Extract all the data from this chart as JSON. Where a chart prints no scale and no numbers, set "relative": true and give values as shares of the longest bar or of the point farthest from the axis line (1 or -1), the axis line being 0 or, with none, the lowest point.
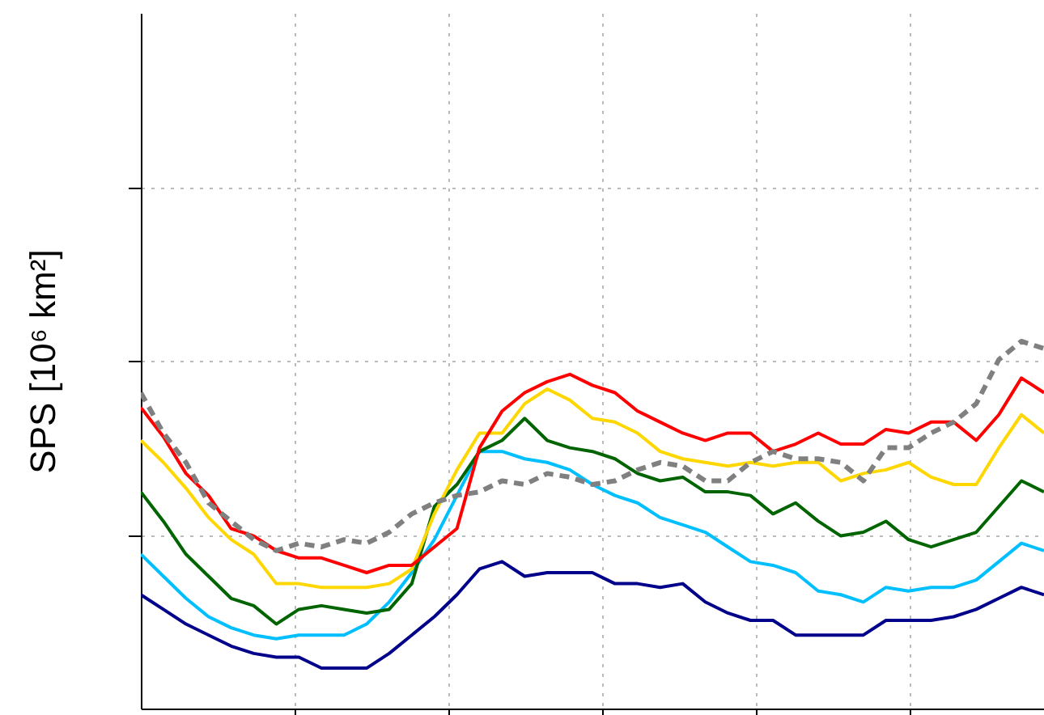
{
  "chart_data": {
    "type": "line",
    "relative": true,
    "ylabel": "SPS [10⁶ km²]",
    "grid": true,
    "categories": [
      null,
      null,
      null,
      null,
      null,
      null,
      null,
      null,
      null,
      null,
      null,
      null,
      null,
      null,
      null,
      null,
      null,
      null,
      null,
      null,
      null,
      null,
      null,
      null,
      null,
      null,
      null,
      null,
      null,
      null,
      null,
      null,
      null,
      null,
      null,
      null,
      null,
      null,
      null,
      null,
      null
    ],
    "series": [
      {
        "color": "#00008b",
        "values": [
          0.31,
          0.27,
          0.23,
          0.2,
          0.17,
          0.15,
          0.14,
          0.14,
          0.11,
          0.11,
          0.11,
          0.15,
          0.2,
          0.25,
          0.31,
          0.38,
          0.4,
          0.36,
          0.37,
          0.37,
          0.37,
          0.34,
          0.34,
          0.33,
          0.34,
          0.29,
          0.26,
          0.24,
          0.24,
          0.2,
          0.2,
          0.2,
          0.2,
          0.24,
          0.24,
          0.24,
          0.25,
          0.27,
          0.3,
          0.33,
          0.31
        ]
      },
      {
        "color": "#00bfff",
        "values": [
          0.42,
          0.36,
          0.3,
          0.25,
          0.22,
          0.2,
          0.19,
          0.2,
          0.2,
          0.2,
          0.23,
          0.29,
          0.37,
          0.46,
          0.58,
          0.7,
          0.7,
          0.68,
          0.67,
          0.65,
          0.61,
          0.58,
          0.56,
          0.52,
          0.5,
          0.48,
          0.44,
          0.4,
          0.39,
          0.37,
          0.32,
          0.31,
          0.29,
          0.33,
          0.32,
          0.33,
          0.33,
          0.35,
          0.4,
          0.45,
          0.43
        ]
      },
      {
        "color": "#006400",
        "values": [
          0.59,
          0.51,
          0.42,
          0.36,
          0.3,
          0.28,
          0.23,
          0.27,
          0.28,
          0.27,
          0.26,
          0.27,
          0.34,
          0.55,
          0.61,
          0.7,
          0.73,
          0.79,
          0.73,
          0.71,
          0.7,
          0.68,
          0.64,
          0.62,
          0.63,
          0.59,
          0.59,
          0.58,
          0.53,
          0.56,
          0.51,
          0.47,
          0.48,
          0.51,
          0.46,
          0.44,
          0.46,
          0.48,
          0.55,
          0.62,
          0.59
        ]
      },
      {
        "color": "#ffd700",
        "values": [
          0.73,
          0.67,
          0.6,
          0.52,
          0.46,
          0.42,
          0.34,
          0.34,
          0.33,
          0.33,
          0.33,
          0.34,
          0.38,
          0.53,
          0.65,
          0.75,
          0.75,
          0.83,
          0.87,
          0.84,
          0.79,
          0.78,
          0.75,
          0.7,
          0.68,
          0.67,
          0.66,
          0.67,
          0.66,
          0.67,
          0.67,
          0.62,
          0.64,
          0.65,
          0.67,
          0.63,
          0.61,
          0.61,
          0.71,
          0.8,
          0.75
        ]
      },
      {
        "color": "#ff0000",
        "values": [
          0.82,
          0.74,
          0.64,
          0.58,
          0.49,
          0.47,
          0.43,
          0.41,
          0.41,
          0.39,
          0.37,
          0.39,
          0.39,
          0.44,
          0.49,
          0.71,
          0.81,
          0.86,
          0.89,
          0.91,
          0.88,
          0.86,
          0.81,
          0.78,
          0.75,
          0.73,
          0.75,
          0.75,
          0.7,
          0.72,
          0.75,
          0.72,
          0.72,
          0.76,
          0.75,
          0.78,
          0.78,
          0.73,
          0.8,
          0.9,
          0.86
        ]
      },
      {
        "color": "#808080",
        "line_style": "dashed",
        "values": [
          0.86,
          0.75,
          0.67,
          0.56,
          0.51,
          0.46,
          0.43,
          0.45,
          0.44,
          0.46,
          0.45,
          0.48,
          0.53,
          0.56,
          0.58,
          0.59,
          0.62,
          0.61,
          0.64,
          0.63,
          0.61,
          0.62,
          0.65,
          0.67,
          0.66,
          0.62,
          0.62,
          0.67,
          0.7,
          0.68,
          0.68,
          0.67,
          0.62,
          0.71,
          0.71,
          0.75,
          0.78,
          0.83,
          0.95,
          1,
          0.98
        ]
      }
    ]
  }
}
